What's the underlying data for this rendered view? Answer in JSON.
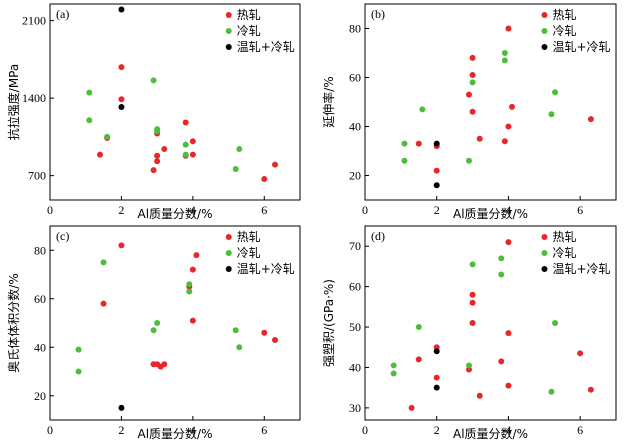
{
  "chart_data": [
    {
      "type": "scatter",
      "panel": "(a)",
      "xlabel": "Al质量分数/%",
      "ylabel": "抗拉强度/MPa",
      "xlim": [
        0,
        7
      ],
      "ylim": [
        480,
        2250
      ],
      "xticks": [
        0,
        2,
        4,
        6
      ],
      "yticks": [
        700,
        1400,
        2100
      ],
      "legend": "top-right",
      "series": [
        {
          "name": "热轧",
          "color": "#e8262b",
          "points": [
            [
              1.4,
              890
            ],
            [
              1.6,
              1040
            ],
            [
              2.0,
              1680
            ],
            [
              2.0,
              1390
            ],
            [
              2.9,
              750
            ],
            [
              3.0,
              880
            ],
            [
              3.0,
              830
            ],
            [
              3.0,
              1080
            ],
            [
              3.2,
              940
            ],
            [
              3.8,
              1180
            ],
            [
              3.8,
              880
            ],
            [
              4.0,
              1010
            ],
            [
              4.0,
              890
            ],
            [
              6.0,
              670
            ],
            [
              6.3,
              800
            ]
          ]
        },
        {
          "name": "冷轧",
          "color": "#4dbd3b",
          "points": [
            [
              1.1,
              1450
            ],
            [
              1.1,
              1200
            ],
            [
              1.6,
              1050
            ],
            [
              2.9,
              1560
            ],
            [
              3.0,
              1100
            ],
            [
              3.0,
              1120
            ],
            [
              3.8,
              980
            ],
            [
              3.8,
              890
            ],
            [
              5.2,
              760
            ],
            [
              5.3,
              940
            ]
          ]
        },
        {
          "name": "温轧+冷轧",
          "color": "#000000",
          "points": [
            [
              2.0,
              2200
            ],
            [
              2.0,
              1320
            ]
          ]
        }
      ]
    },
    {
      "type": "scatter",
      "panel": "(b)",
      "xlabel": "Al质量分数/%",
      "ylabel": "延伸率/%",
      "xlim": [
        0,
        7
      ],
      "ylim": [
        10,
        90
      ],
      "xticks": [
        0,
        2,
        4,
        6
      ],
      "yticks": [
        20,
        40,
        60,
        80
      ],
      "legend": "top-right",
      "series": [
        {
          "name": "热轧",
          "color": "#e8262b",
          "points": [
            [
              1.5,
              33
            ],
            [
              2.0,
              32
            ],
            [
              2.0,
              22
            ],
            [
              2.9,
              53
            ],
            [
              3.0,
              68
            ],
            [
              3.0,
              61
            ],
            [
              3.0,
              46
            ],
            [
              3.2,
              35
            ],
            [
              3.9,
              34
            ],
            [
              4.0,
              80
            ],
            [
              4.0,
              40
            ],
            [
              4.1,
              48
            ],
            [
              6.3,
              43
            ]
          ]
        },
        {
          "name": "冷轧",
          "color": "#4dbd3b",
          "points": [
            [
              1.1,
              33
            ],
            [
              1.1,
              26
            ],
            [
              1.6,
              47
            ],
            [
              2.9,
              26
            ],
            [
              3.0,
              58
            ],
            [
              3.9,
              70
            ],
            [
              3.9,
              67
            ],
            [
              5.2,
              45
            ],
            [
              5.3,
              54
            ]
          ]
        },
        {
          "name": "温轧+冷轧",
          "color": "#000000",
          "points": [
            [
              2.0,
              33
            ],
            [
              2.0,
              16
            ]
          ]
        }
      ]
    },
    {
      "type": "scatter",
      "panel": "(c)",
      "xlabel": "Al质量分数/%",
      "ylabel": "奥氏体体积分数/%",
      "xlim": [
        0,
        7
      ],
      "ylim": [
        10,
        90
      ],
      "xticks": [
        0,
        2,
        4,
        6
      ],
      "yticks": [
        20,
        40,
        60,
        80
      ],
      "legend": "top-right",
      "series": [
        {
          "name": "热轧",
          "color": "#e8262b",
          "points": [
            [
              1.5,
              58
            ],
            [
              2.0,
              82
            ],
            [
              2.9,
              33
            ],
            [
              3.0,
              33
            ],
            [
              3.1,
              32
            ],
            [
              3.2,
              33
            ],
            [
              3.9,
              65
            ],
            [
              4.0,
              72
            ],
            [
              4.1,
              78
            ],
            [
              4.0,
              51
            ],
            [
              6.0,
              46
            ],
            [
              6.3,
              43
            ]
          ]
        },
        {
          "name": "冷轧",
          "color": "#4dbd3b",
          "points": [
            [
              0.8,
              39
            ],
            [
              0.8,
              30
            ],
            [
              1.5,
              75
            ],
            [
              2.9,
              47
            ],
            [
              3.0,
              50
            ],
            [
              3.9,
              66
            ],
            [
              3.9,
              63
            ],
            [
              5.2,
              47
            ],
            [
              5.3,
              40
            ]
          ]
        },
        {
          "name": "温轧+冷轧",
          "color": "#000000",
          "points": [
            [
              2.0,
              15
            ]
          ]
        }
      ]
    },
    {
      "type": "scatter",
      "panel": "(d)",
      "xlabel": "Al质量分数/%",
      "ylabel": "强塑积/(GPa·%)",
      "xlim": [
        0,
        7
      ],
      "ylim": [
        27,
        75
      ],
      "xticks": [
        0,
        2,
        4,
        6
      ],
      "yticks": [
        30,
        40,
        50,
        60,
        70
      ],
      "legend": "top-right",
      "series": [
        {
          "name": "热轧",
          "color": "#e8262b",
          "points": [
            [
              1.3,
              30
            ],
            [
              1.5,
              42
            ],
            [
              2.0,
              45
            ],
            [
              2.0,
              37.5
            ],
            [
              2.9,
              39.5
            ],
            [
              3.0,
              58
            ],
            [
              3.0,
              56
            ],
            [
              3.0,
              51
            ],
            [
              3.2,
              33
            ],
            [
              3.8,
              41.5
            ],
            [
              4.0,
              71
            ],
            [
              4.0,
              35.5
            ],
            [
              4.0,
              48.5
            ],
            [
              6.0,
              43.5
            ],
            [
              6.3,
              34.5
            ]
          ]
        },
        {
          "name": "冷轧",
          "color": "#4dbd3b",
          "points": [
            [
              0.8,
              40.5
            ],
            [
              0.8,
              38.5
            ],
            [
              1.5,
              50
            ],
            [
              2.9,
              40.5
            ],
            [
              3.0,
              65.5
            ],
            [
              3.8,
              67
            ],
            [
              3.8,
              63
            ],
            [
              5.2,
              34
            ],
            [
              5.3,
              51
            ]
          ]
        },
        {
          "name": "温轧+冷轧",
          "color": "#000000",
          "points": [
            [
              2.0,
              44
            ],
            [
              2.0,
              35
            ]
          ]
        }
      ]
    }
  ]
}
